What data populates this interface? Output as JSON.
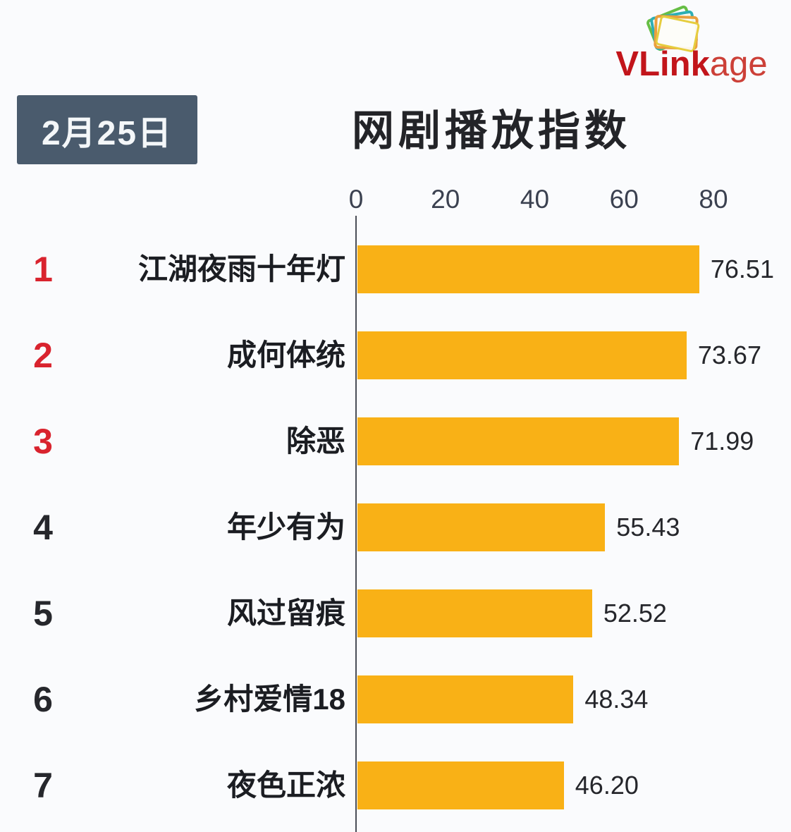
{
  "logo": {
    "brand_bold": "VLink",
    "brand_light": "age",
    "color_bold": "#C2151B",
    "color_light": "#CC4038",
    "icon": "stacked-cards-icon",
    "icon_colors": [
      "#66BE45",
      "#2EAEB4",
      "#EA9F3E",
      "#E6CD3E"
    ]
  },
  "header": {
    "date_label": "2月25日",
    "badge_bg": "#4A5B6D",
    "title": "网剧播放指数"
  },
  "chart_data": {
    "type": "bar",
    "orientation": "horizontal",
    "title": "网剧播放指数",
    "date": "2月25日",
    "xlabel": "",
    "ylabel": "",
    "xlim": [
      0,
      80
    ],
    "xticks": [
      0,
      20,
      40,
      60,
      80
    ],
    "grid": false,
    "legend": "none",
    "bar_color": "#F9B116",
    "axis_color": "#4A4E57",
    "categories": [
      "江湖夜雨十年灯",
      "成何体统",
      "除恶",
      "年少有为",
      "风过留痕",
      "乡村爱情18",
      "夜色正浓"
    ],
    "values": [
      76.51,
      73.67,
      71.99,
      55.43,
      52.52,
      48.34,
      46.2
    ],
    "items": [
      {
        "rank": "1",
        "label": "江湖夜雨十年灯",
        "value": 76.51,
        "value_label": "76.51"
      },
      {
        "rank": "2",
        "label": "成何体统",
        "value": 73.67,
        "value_label": "73.67"
      },
      {
        "rank": "3",
        "label": "除恶",
        "value": 71.99,
        "value_label": "71.99"
      },
      {
        "rank": "4",
        "label": "年少有为",
        "value": 55.43,
        "value_label": "55.43"
      },
      {
        "rank": "5",
        "label": "风过留痕",
        "value": 52.52,
        "value_label": "52.52"
      },
      {
        "rank": "6",
        "label": "乡村爱情18",
        "value": 48.34,
        "value_label": "48.34"
      },
      {
        "rank": "7",
        "label": "夜色正浓",
        "value": 46.2,
        "value_label": "46.20"
      }
    ],
    "rank_color_top3": "#D9232E",
    "rank_color_rest": "#26272C"
  }
}
